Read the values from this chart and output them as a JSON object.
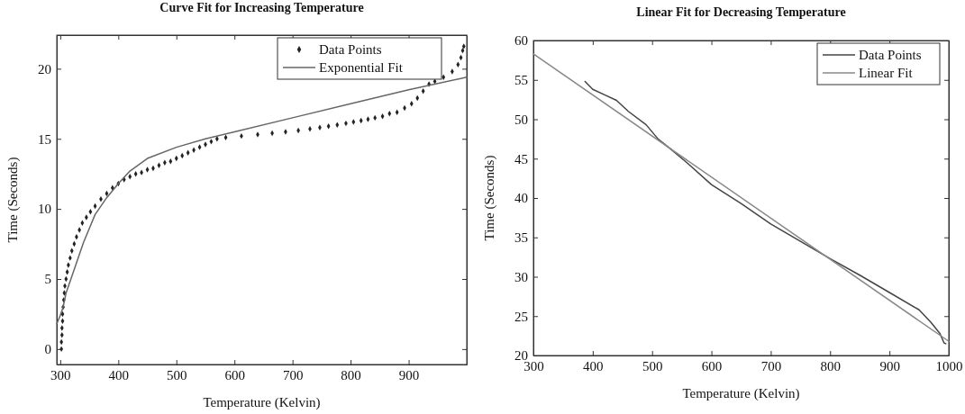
{
  "chart_data": [
    {
      "type": "line",
      "title": "Curve Fit for Increasing Temperature",
      "xlabel": "Temperature (Kelvin)",
      "ylabel": "Time (Seconds)",
      "xlim": [
        294,
        1000
      ],
      "ylim": [
        -1.1,
        22.4
      ],
      "xticks": [
        300,
        400,
        500,
        600,
        700,
        800,
        900
      ],
      "yticks": [
        0,
        5,
        10,
        15,
        20
      ],
      "legend": "top right",
      "series": [
        {
          "name": "Data Points",
          "type": "scatter",
          "marker": "diamond",
          "color": "#222222",
          "x": [
            302,
            302,
            303,
            303,
            304,
            304,
            305,
            306,
            307,
            308,
            310,
            312,
            314,
            317,
            320,
            324,
            328,
            333,
            338,
            345,
            352,
            360,
            370,
            380,
            390,
            400,
            410,
            420,
            430,
            440,
            450,
            460,
            470,
            480,
            490,
            500,
            510,
            520,
            530,
            540,
            550,
            560,
            570,
            585,
            612,
            640,
            665,
            688,
            710,
            730,
            747,
            762,
            777,
            792,
            805,
            818,
            830,
            842,
            855,
            867,
            880,
            893,
            905,
            915,
            925,
            935,
            945,
            960,
            975,
            985,
            990,
            993,
            995
          ],
          "values": [
            0,
            0.5,
            1,
            1.5,
            2,
            2.5,
            3,
            3.5,
            4,
            4.5,
            5,
            5.5,
            6,
            6.5,
            7,
            7.5,
            8,
            8.5,
            9,
            9.4,
            9.8,
            10.2,
            10.7,
            11.1,
            11.5,
            11.8,
            12.1,
            12.3,
            12.5,
            12.6,
            12.8,
            12.9,
            13.1,
            13.3,
            13.4,
            13.6,
            13.8,
            14.0,
            14.2,
            14.4,
            14.6,
            14.8,
            15.0,
            15.1,
            15.2,
            15.3,
            15.4,
            15.5,
            15.6,
            15.7,
            15.8,
            15.9,
            16.0,
            16.1,
            16.2,
            16.3,
            16.4,
            16.5,
            16.6,
            16.8,
            16.9,
            17.2,
            17.5,
            17.9,
            18.4,
            18.9,
            19.1,
            19.4,
            19.8,
            20.3,
            20.8,
            21.3,
            21.6
          ]
        },
        {
          "name": "Exponential Fit",
          "color": "#666666",
          "x": [
            294,
            300,
            305,
            310,
            320,
            340,
            360,
            380,
            400,
            420,
            450,
            500,
            550,
            600,
            700,
            800,
            900,
            1000
          ],
          "values": [
            1.8,
            2.4,
            3.0,
            4.0,
            5.2,
            7.6,
            9.6,
            10.8,
            11.8,
            12.7,
            13.6,
            14.4,
            15.0,
            15.5,
            16.5,
            17.5,
            18.5,
            19.4
          ]
        }
      ]
    },
    {
      "type": "line",
      "title": "Linear Fit for Decreasing Temperature",
      "xlabel": "Temperature (Kelvin)",
      "ylabel": "Time (Seconds)",
      "xlim": [
        300,
        1000
      ],
      "ylim": [
        20,
        60
      ],
      "xticks": [
        300,
        400,
        500,
        600,
        700,
        800,
        900,
        1000
      ],
      "yticks": [
        20,
        25,
        30,
        35,
        40,
        45,
        50,
        55,
        60
      ],
      "legend": "top right",
      "series": [
        {
          "name": "Data Points",
          "color": "#444444",
          "x": [
            387,
            400,
            420,
            440,
            460,
            490,
            510,
            530,
            560,
            600,
            650,
            700,
            750,
            800,
            850,
            900,
            950,
            970,
            985,
            992,
            995
          ],
          "values": [
            54.8,
            53.8,
            53.1,
            52.4,
            51.0,
            49.3,
            47.5,
            46.3,
            44.4,
            41.7,
            39.3,
            36.7,
            34.5,
            32.3,
            30.2,
            28.0,
            25.8,
            24.2,
            22.8,
            21.6,
            21.5
          ]
        },
        {
          "name": "Linear Fit",
          "color": "#888888",
          "x": [
            300,
            1000
          ],
          "values": [
            58.3,
            21.8
          ]
        }
      ]
    }
  ]
}
